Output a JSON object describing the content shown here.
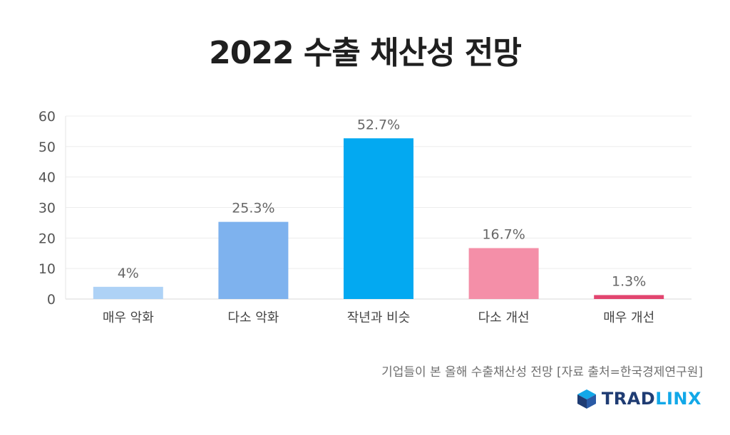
{
  "chart_data": {
    "type": "bar",
    "title": "2022 수출 채산성 전망",
    "categories": [
      "매우 악화",
      "다소 악화",
      "작년과 비슷",
      "다소 개선",
      "매우 개선"
    ],
    "values": [
      4,
      25.3,
      52.7,
      16.7,
      1.3
    ],
    "data_labels": [
      "4%",
      "25.3%",
      "52.7%",
      "16.7%",
      "1.3%"
    ],
    "bar_colors": [
      "#aed2f6",
      "#7eb2ee",
      "#03a9f1",
      "#f48fa8",
      "#e2456f"
    ],
    "ylim": [
      0,
      60
    ],
    "yticks": [
      0,
      10,
      20,
      30,
      40,
      50,
      60
    ],
    "grid": true,
    "legend": "none"
  },
  "source_note": "기업들이 본 올해 수출채산성 전망 [자료 출처=한국경제연구원]",
  "brand": {
    "part1": "TRAD",
    "part2": "LINX",
    "icon": "cube-logo-icon",
    "colors": {
      "dark": "#1f3c73",
      "light": "#12a8e8"
    }
  }
}
